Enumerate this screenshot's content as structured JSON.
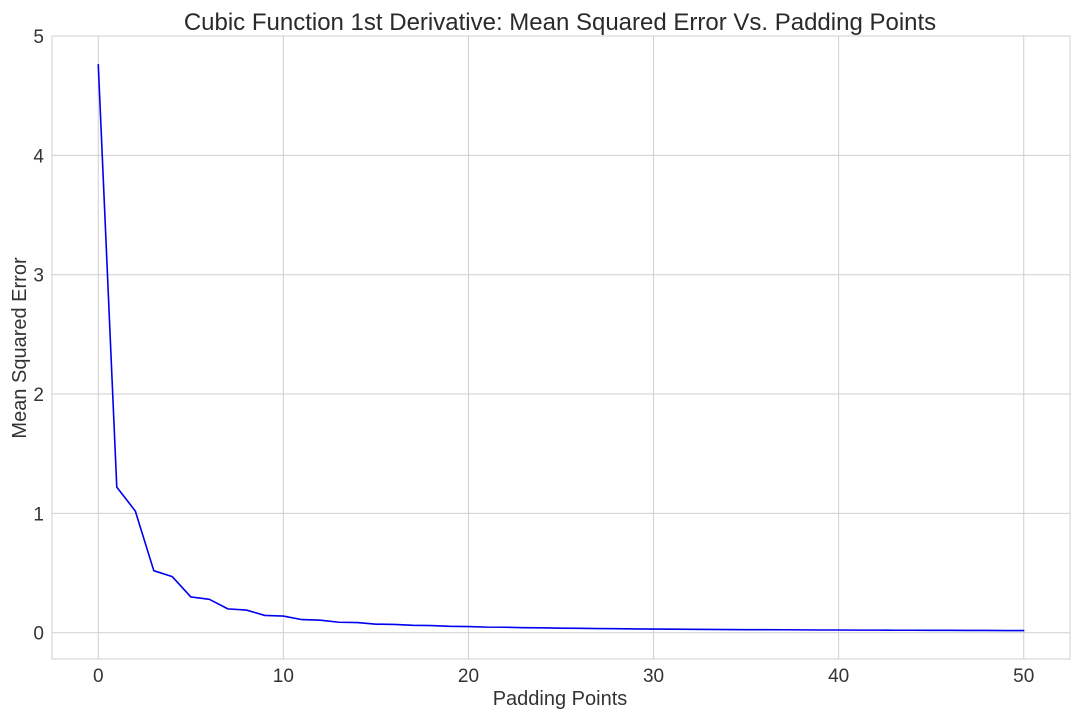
{
  "chart_data": {
    "type": "line",
    "title": "Cubic Function 1st Derivative: Mean Squared Error Vs. Padding Points",
    "xlabel": "Padding Points",
    "ylabel": "Mean Squared Error",
    "xlim": [
      -2.5,
      52.5
    ],
    "ylim": [
      -0.22,
      5
    ],
    "xticks": [
      0,
      10,
      20,
      30,
      40,
      50
    ],
    "yticks": [
      0,
      1,
      2,
      3,
      4,
      5
    ],
    "xtick_labels": [
      "0",
      "10",
      "20",
      "30",
      "40",
      "50"
    ],
    "ytick_labels": [
      "0",
      "1",
      "2",
      "3",
      "4",
      "5"
    ],
    "grid": true,
    "series": [
      {
        "color": "#0000ee",
        "x": [
          0,
          1,
          2,
          3,
          4,
          5,
          6,
          7,
          8,
          9,
          10,
          11,
          12,
          13,
          14,
          15,
          16,
          17,
          18,
          19,
          20,
          21,
          22,
          23,
          24,
          25,
          26,
          27,
          28,
          29,
          30,
          31,
          32,
          33,
          34,
          35,
          36,
          37,
          38,
          39,
          40,
          41,
          42,
          43,
          44,
          45,
          46,
          47,
          48,
          49,
          50
        ],
        "y": [
          4.76,
          1.22,
          1.02,
          0.52,
          0.47,
          0.3,
          0.28,
          0.2,
          0.19,
          0.145,
          0.14,
          0.11,
          0.105,
          0.088,
          0.085,
          0.072,
          0.07,
          0.062,
          0.06,
          0.054,
          0.052,
          0.047,
          0.046,
          0.042,
          0.041,
          0.038,
          0.037,
          0.035,
          0.034,
          0.032,
          0.031,
          0.03,
          0.029,
          0.028,
          0.027,
          0.026,
          0.026,
          0.025,
          0.024,
          0.023,
          0.023,
          0.022,
          0.022,
          0.021,
          0.021,
          0.02,
          0.02,
          0.019,
          0.019,
          0.018,
          0.018
        ]
      }
    ]
  }
}
